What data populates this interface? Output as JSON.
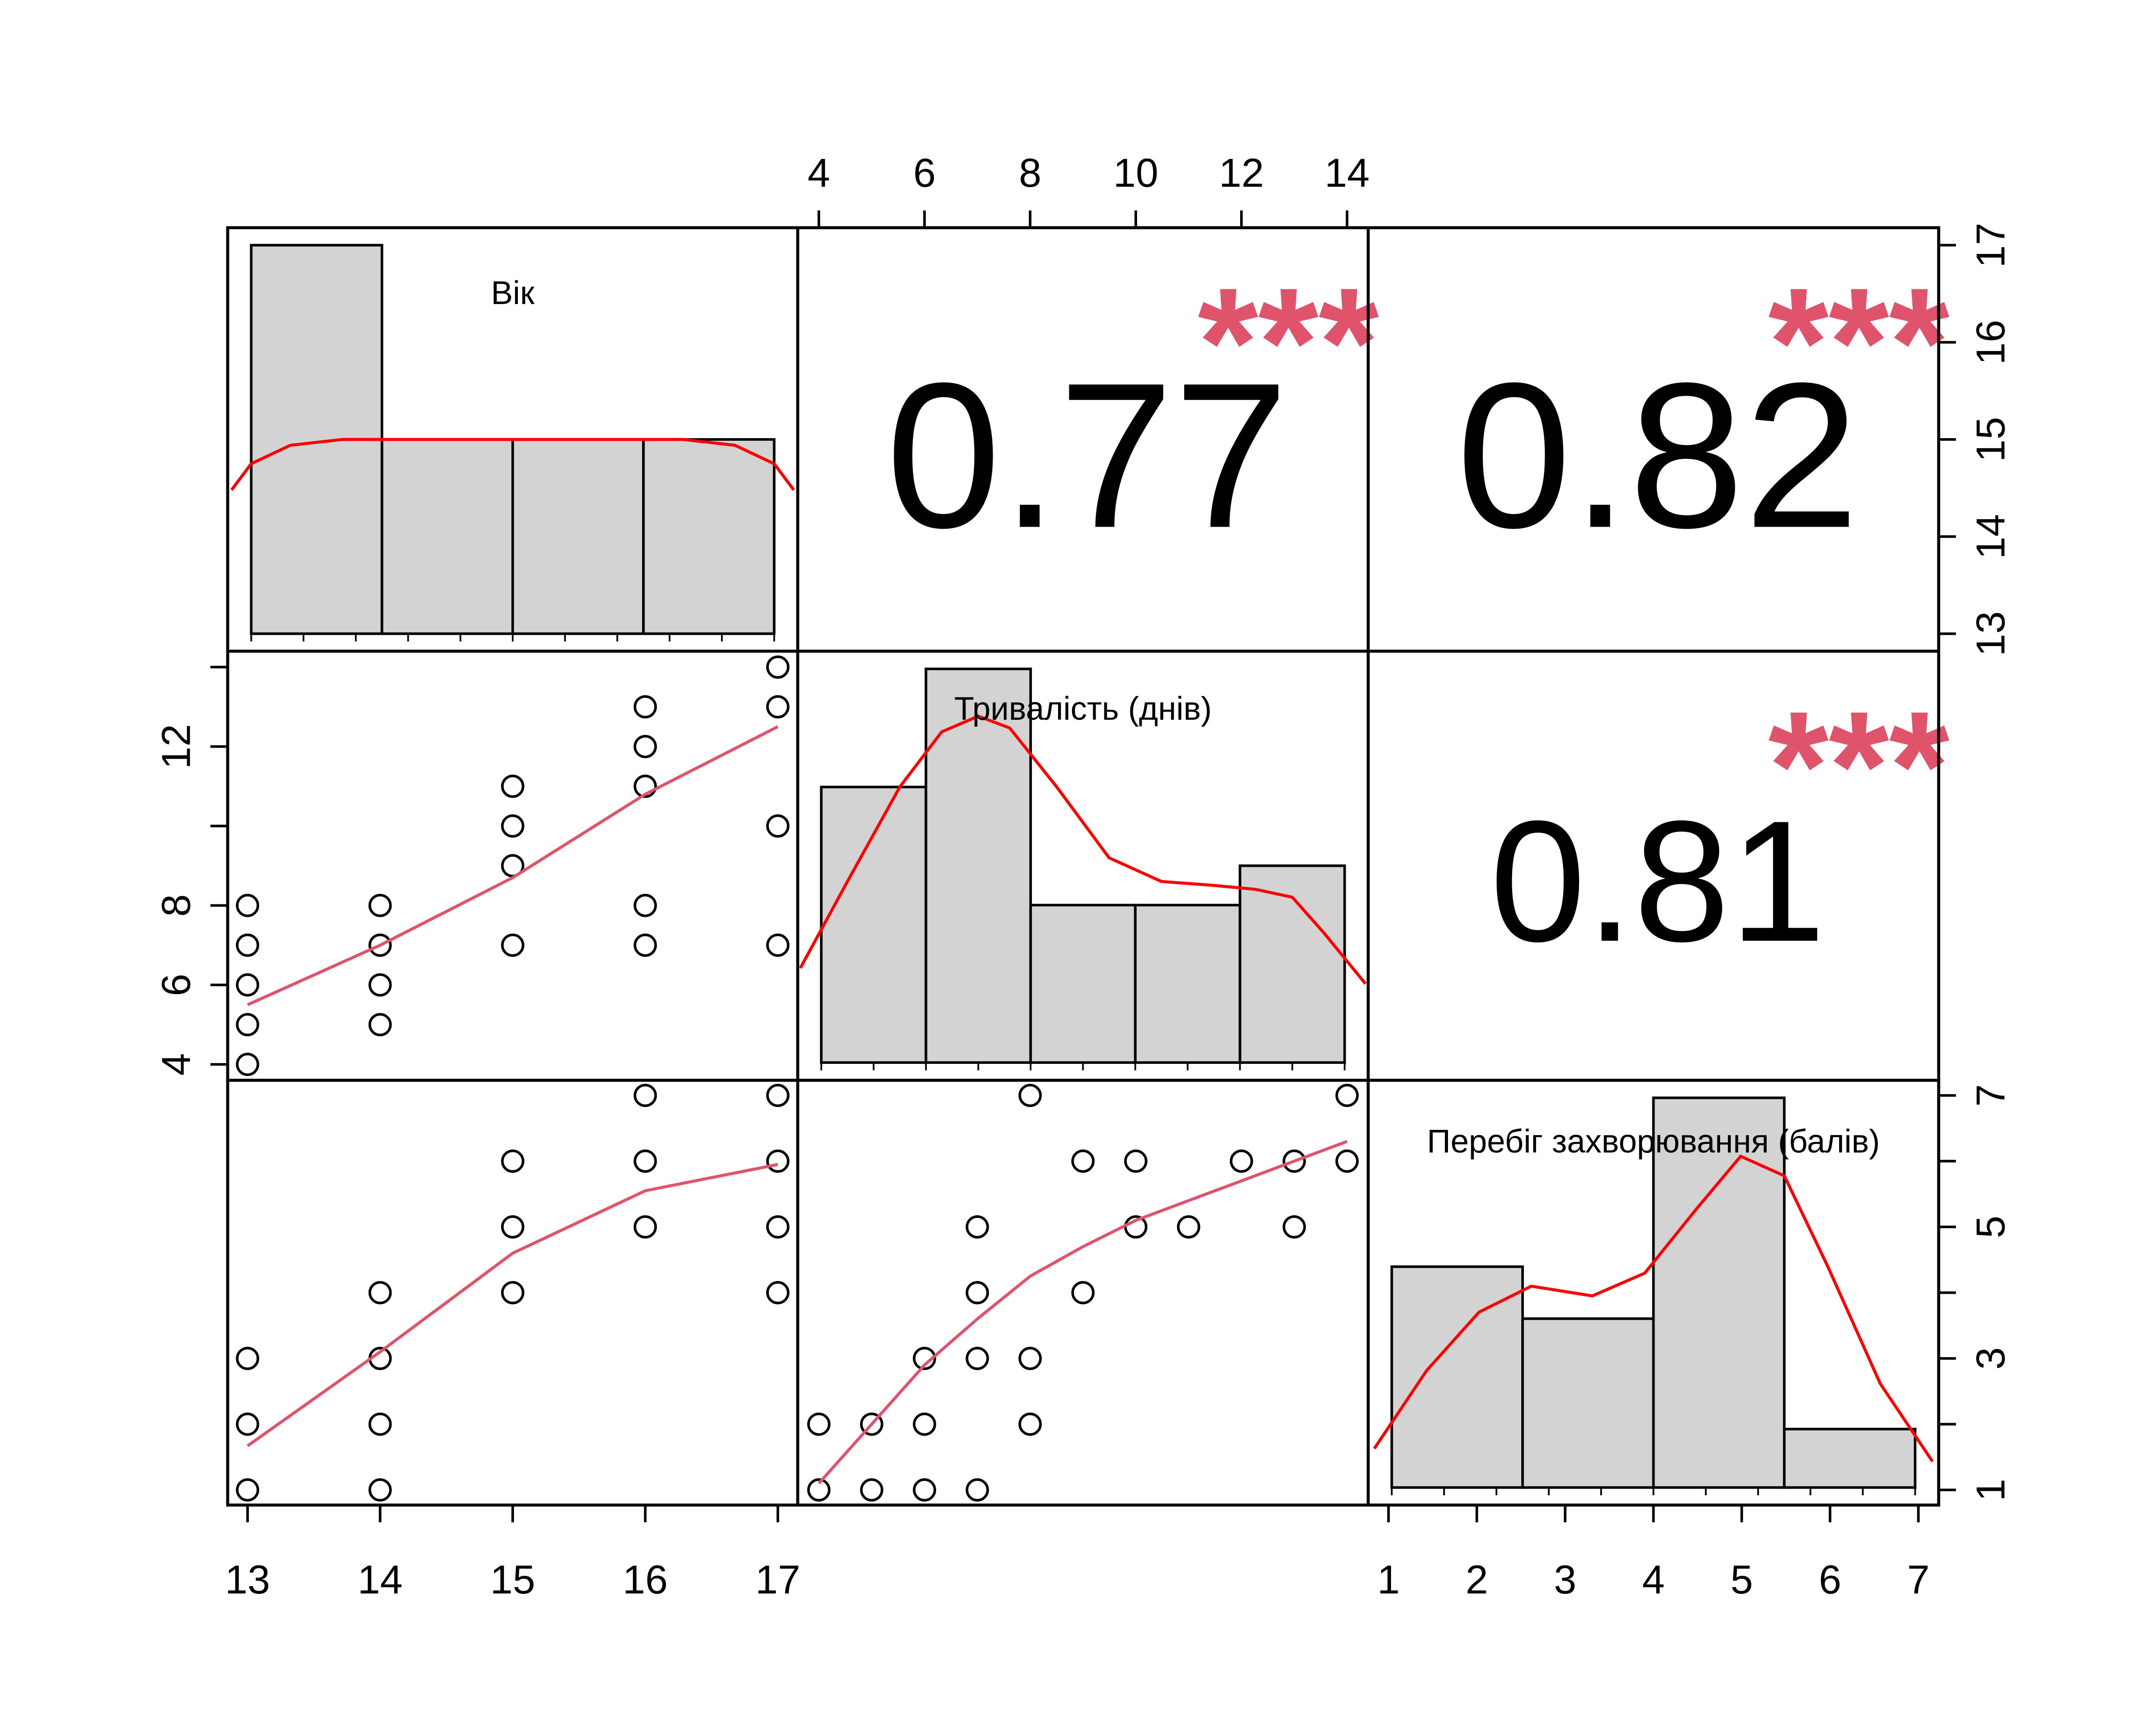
{
  "chart_data": {
    "type": "scatter-matrix",
    "variables": [
      "Вік",
      "Тривалість (днів)",
      "Перебіг захворювання (балів)"
    ],
    "axes": {
      "top_ticks": [
        "4",
        "6",
        "8",
        "10",
        "12",
        "14"
      ],
      "bottom_left_ticks": [
        "13",
        "14",
        "15",
        "16",
        "17"
      ],
      "bottom_right_ticks": [
        "1",
        "2",
        "3",
        "4",
        "5",
        "6",
        "7"
      ],
      "left_ticks": [
        "4",
        "6",
        "8",
        "12"
      ],
      "right_top_ticks": [
        "13",
        "14",
        "15",
        "16",
        "17"
      ],
      "right_bottom_ticks": [
        "1",
        "3",
        "5",
        "7"
      ]
    },
    "correlations": [
      {
        "pair": [
          "Вік",
          "Тривалість (днів)"
        ],
        "value": "0.77",
        "stars": "***"
      },
      {
        "pair": [
          "Вік",
          "Перебіг захворювання (балів)"
        ],
        "value": "0.82",
        "stars": "***"
      },
      {
        "pair": [
          "Тривалість (днів)",
          "Перебіг захворювання (балів)"
        ],
        "value": "0.81",
        "stars": "***"
      }
    ],
    "histograms": [
      {
        "variable": "Вік",
        "breaks": [
          13,
          14,
          15,
          16,
          17
        ],
        "heights": [
          17,
          15,
          15,
          15
        ],
        "ylim": [
          13,
          17
        ],
        "density_curve": [
          [
            12.85,
            14.48
          ],
          [
            13.0,
            14.75
          ],
          [
            13.3,
            14.94
          ],
          [
            13.7,
            15.0
          ],
          [
            14.5,
            15.0
          ],
          [
            15.5,
            15.0
          ],
          [
            16.3,
            15.0
          ],
          [
            16.7,
            14.94
          ],
          [
            17.0,
            14.75
          ],
          [
            17.15,
            14.48
          ]
        ]
      },
      {
        "variable": "Тривалість (днів)",
        "breaks": [
          4,
          6,
          8,
          10,
          12,
          14
        ],
        "heights": [
          11,
          14,
          8,
          8,
          9
        ],
        "ylim": [
          4,
          14
        ],
        "density_curve": [
          [
            3.6,
            6.4
          ],
          [
            4.5,
            8.6
          ],
          [
            5.5,
            11.0
          ],
          [
            6.3,
            12.4
          ],
          [
            7.0,
            12.8
          ],
          [
            7.6,
            12.5
          ],
          [
            8.5,
            11.0
          ],
          [
            9.5,
            9.2
          ],
          [
            10.5,
            8.6
          ],
          [
            11.5,
            8.5
          ],
          [
            12.3,
            8.4
          ],
          [
            13.0,
            8.2
          ],
          [
            13.6,
            7.3
          ],
          [
            14.4,
            6.0
          ]
        ]
      },
      {
        "variable": "Перебіг захворювання (балів)",
        "breaks": [
          1,
          2.5,
          4,
          5.5,
          7
        ],
        "heights": [
          4.4,
          3.6,
          7,
          1.9
        ],
        "ylim": [
          1,
          7
        ],
        "density_curve": [
          [
            0.8,
            1.6
          ],
          [
            1.4,
            2.8
          ],
          [
            2.0,
            3.7
          ],
          [
            2.6,
            4.1
          ],
          [
            3.3,
            3.95
          ],
          [
            3.9,
            4.3
          ],
          [
            4.5,
            5.3
          ],
          [
            5.0,
            6.1
          ],
          [
            5.5,
            5.8
          ],
          [
            6.0,
            4.4
          ],
          [
            6.6,
            2.6
          ],
          [
            7.2,
            1.4
          ]
        ]
      }
    ],
    "scatter": [
      {
        "x": "Вік",
        "y": "Тривалість (днів)",
        "xlim": [
          12.85,
          17.15
        ],
        "ylim": [
          3.6,
          14.4
        ],
        "points": [
          [
            13,
            4
          ],
          [
            13,
            5
          ],
          [
            13,
            6
          ],
          [
            13,
            7
          ],
          [
            13,
            8
          ],
          [
            14,
            5
          ],
          [
            14,
            6
          ],
          [
            14,
            7
          ],
          [
            14,
            8
          ],
          [
            15,
            7
          ],
          [
            15,
            9
          ],
          [
            15,
            10
          ],
          [
            15,
            11
          ],
          [
            16,
            7
          ],
          [
            16,
            8
          ],
          [
            16,
            11
          ],
          [
            16,
            12
          ],
          [
            16,
            13
          ],
          [
            17,
            7
          ],
          [
            17,
            10
          ],
          [
            17,
            13
          ],
          [
            17,
            14
          ]
        ],
        "smooth": [
          [
            13,
            5.5
          ],
          [
            14,
            7.0
          ],
          [
            15,
            8.7
          ],
          [
            16,
            10.8
          ],
          [
            17,
            12.5
          ]
        ]
      },
      {
        "x": "Вік",
        "y": "Перебіг захворювання (балів)",
        "xlim": [
          12.85,
          17.15
        ],
        "ylim": [
          0.77,
          7.23
        ],
        "points": [
          [
            13,
            1
          ],
          [
            13,
            2
          ],
          [
            13,
            3
          ],
          [
            14,
            1
          ],
          [
            14,
            2
          ],
          [
            14,
            3
          ],
          [
            14,
            4
          ],
          [
            15,
            4
          ],
          [
            15,
            5
          ],
          [
            15,
            6
          ],
          [
            16,
            5
          ],
          [
            16,
            6
          ],
          [
            16,
            7
          ],
          [
            17,
            4
          ],
          [
            17,
            5
          ],
          [
            17,
            6
          ],
          [
            17,
            7
          ]
        ],
        "smooth": [
          [
            13,
            1.67
          ],
          [
            14,
            3.1
          ],
          [
            15,
            4.6
          ],
          [
            16,
            5.55
          ],
          [
            17,
            5.95
          ]
        ]
      },
      {
        "x": "Тривалість (днів)",
        "y": "Перебіг захворювання (балів)",
        "xlim": [
          3.6,
          14.4
        ],
        "ylim": [
          0.77,
          7.23
        ],
        "points": [
          [
            4,
            1
          ],
          [
            4,
            2
          ],
          [
            5,
            1
          ],
          [
            5,
            2
          ],
          [
            6,
            1
          ],
          [
            6,
            2
          ],
          [
            6,
            3
          ],
          [
            7,
            1
          ],
          [
            7,
            3
          ],
          [
            7,
            4
          ],
          [
            7,
            5
          ],
          [
            8,
            2
          ],
          [
            8,
            3
          ],
          [
            8,
            7
          ],
          [
            9,
            4
          ],
          [
            9,
            6
          ],
          [
            10,
            5
          ],
          [
            10,
            6
          ],
          [
            11,
            5
          ],
          [
            12,
            6
          ],
          [
            13,
            5
          ],
          [
            13,
            6
          ],
          [
            14,
            6
          ],
          [
            14,
            7
          ]
        ],
        "smooth": [
          [
            4,
            1.1
          ],
          [
            5,
            2.0
          ],
          [
            6,
            2.9
          ],
          [
            7,
            3.6
          ],
          [
            8,
            4.25
          ],
          [
            9,
            4.7
          ],
          [
            10,
            5.1
          ],
          [
            11,
            5.4
          ],
          [
            12,
            5.7
          ],
          [
            13,
            6.0
          ],
          [
            14,
            6.3
          ]
        ]
      }
    ],
    "colors": {
      "histogram_fill": "#d3d3d3",
      "density_line": "#ff0000",
      "smooth_line": "#df536b",
      "stars": "#df536b",
      "axis": "#000000"
    }
  }
}
